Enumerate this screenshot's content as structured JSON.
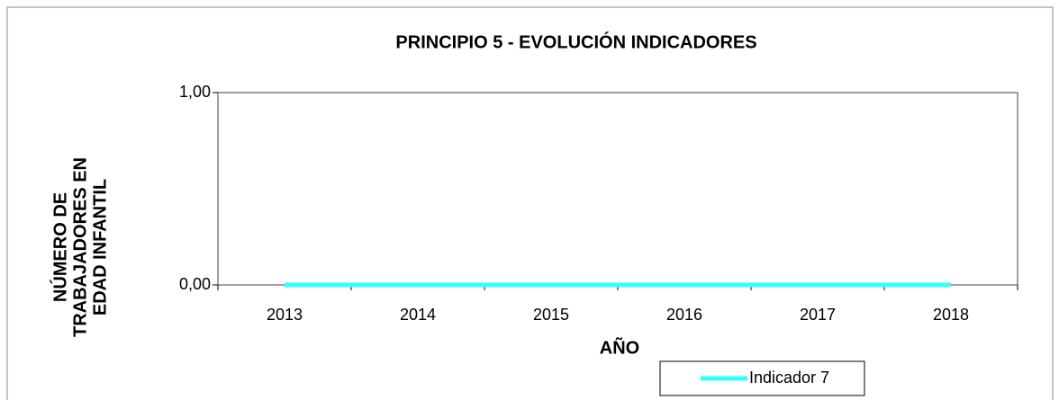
{
  "chart_data": {
    "type": "line",
    "title": "PRINCIPIO  5 - EVOLUCIÓN INDICADORES",
    "xlabel": "AÑO",
    "ylabel": [
      "NÚMERO DE",
      "TRABAJADORES     EN",
      "EDAD INFANTIL"
    ],
    "categories": [
      "2013",
      "2014",
      "2015",
      "2016",
      "2017",
      "2018"
    ],
    "series": [
      {
        "name": "Indicador 7",
        "color": "#33ffff",
        "values": [
          0,
          0,
          0,
          0,
          0,
          0
        ]
      }
    ],
    "ylim": [
      0,
      1
    ],
    "yticks": [
      {
        "value": 0,
        "label": "0,00"
      },
      {
        "value": 1,
        "label": "1,00"
      }
    ],
    "legend": "bottom"
  }
}
